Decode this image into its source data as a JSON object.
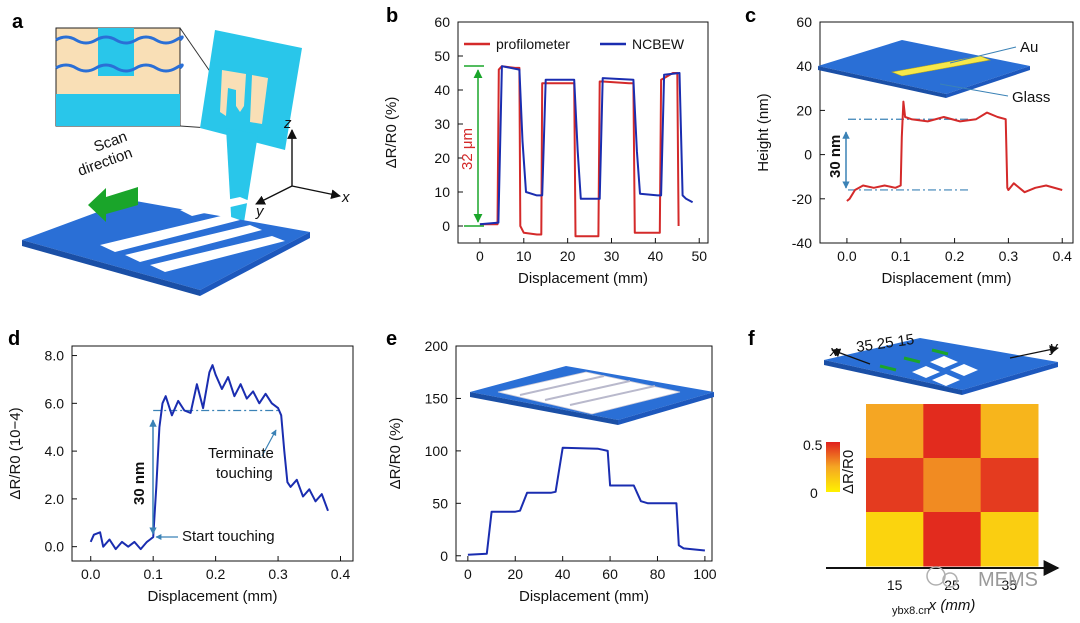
{
  "panels": {
    "a": {
      "label": "a",
      "scan_text_1": "Scan",
      "scan_text_2": "direction",
      "axis_z": "z",
      "axis_x": "x",
      "axis_y": "y"
    },
    "c": {
      "label_au": "Au",
      "label_glass": "Glass",
      "step_label": "30 nm"
    },
    "b": {
      "step_label": "32 μm"
    },
    "d": {
      "step_label": "30 nm",
      "ann_terminate_1": "Terminate",
      "ann_terminate_2": "touching",
      "ann_start": "Start touching"
    },
    "f": {
      "top_x_label": "x",
      "top_y_label": "y",
      "top_positions": "35 25 15",
      "cb_max": "0.5",
      "cb_min": "0"
    }
  },
  "watermark": {
    "text": "MEMS",
    "site": "ybx8.cn"
  },
  "colors": {
    "red": "#d42a2a",
    "navy": "#1a2db0",
    "green": "#1aa52a",
    "steel": "#3b82b6",
    "cyan": "#29c6ea",
    "blue_plate": "#2a6fd6"
  },
  "chart_data": [
    {
      "id": "b",
      "label": "b",
      "type": "line",
      "xlabel": "Displacement (mm)",
      "ylabel": "ΔR/R0 (%)",
      "xlim": [
        -5,
        52
      ],
      "ylim": [
        -5,
        60
      ],
      "xticks": [
        0,
        10,
        20,
        30,
        40,
        50
      ],
      "yticks": [
        0,
        10,
        20,
        30,
        40,
        50,
        60
      ],
      "series": [
        {
          "name": "profilometer",
          "color": "#d42a2a",
          "x": [
            0,
            4,
            4.3,
            5,
            8,
            9,
            9.2,
            10,
            13,
            14,
            14.2,
            15,
            20.5,
            21.5,
            21.8,
            22.5,
            26,
            27,
            27.3,
            28,
            34,
            35,
            35.3,
            36,
            40,
            41,
            41.3,
            42,
            44,
            45,
            45.3
          ],
          "y": [
            0.5,
            0.5,
            46,
            47,
            46.5,
            46.5,
            0,
            -2,
            -2.5,
            -2.5,
            42,
            42,
            42,
            42,
            -3,
            -3,
            -3,
            -3,
            42.5,
            42.5,
            42,
            42,
            -2,
            -2,
            -2,
            -2,
            43,
            43.5,
            45,
            45,
            0
          ]
        },
        {
          "name": "NCBEW",
          "color": "#1a2db0",
          "x": [
            0,
            4.2,
            5,
            9,
            9.7,
            10.5,
            13,
            14.2,
            15,
            21.5,
            22.3,
            23,
            26.5,
            27.3,
            28,
            35,
            35.8,
            36.5,
            40.5,
            41.3,
            42,
            45.5,
            46.2,
            47,
            48.5
          ],
          "y": [
            0.5,
            1,
            47,
            46,
            25,
            10,
            9,
            9,
            43,
            43,
            22,
            8,
            8,
            8,
            43.5,
            43,
            22,
            9.5,
            9,
            9,
            44.5,
            45,
            9,
            8,
            7
          ]
        }
      ],
      "legend": "top"
    },
    {
      "id": "c",
      "label": "c",
      "type": "line",
      "xlabel": "Displacement (mm)",
      "ylabel": "Height (nm)",
      "xlim": [
        -0.05,
        0.42
      ],
      "ylim": [
        -40,
        60
      ],
      "xticks": [
        0.0,
        0.1,
        0.2,
        0.3,
        0.4
      ],
      "yticks": [
        -40,
        -20,
        0,
        20,
        40,
        60
      ],
      "series": [
        {
          "color": "#d42a2a",
          "x": [
            0.0,
            0.005,
            0.015,
            0.03,
            0.05,
            0.07,
            0.09,
            0.1,
            0.102,
            0.105,
            0.108,
            0.12,
            0.15,
            0.18,
            0.21,
            0.24,
            0.26,
            0.28,
            0.295,
            0.298,
            0.3,
            0.31,
            0.33,
            0.35,
            0.37,
            0.4
          ],
          "y": [
            -21,
            -20,
            -16,
            -14,
            -15,
            -14,
            -15,
            -14,
            8,
            24,
            17,
            16,
            15,
            17,
            15,
            16,
            19,
            17,
            16,
            -15,
            -16,
            -13,
            -17,
            -15,
            -14,
            -16
          ]
        }
      ],
      "refs": [
        16,
        -16
      ]
    },
    {
      "id": "d",
      "label": "d",
      "type": "line",
      "xlabel": "Displacement (mm)",
      "ylabel": "ΔR/R0 (10−4)",
      "xlim": [
        -0.03,
        0.42
      ],
      "ylim": [
        -0.6,
        8.4
      ],
      "xticks": [
        0.0,
        0.1,
        0.2,
        0.3,
        0.4
      ],
      "yticks": [
        0.0,
        2.0,
        4.0,
        6.0,
        8.0
      ],
      "ytick_labels": [
        "0.0",
        "2.0",
        "4.0",
        "6.0",
        "8.0"
      ],
      "series": [
        {
          "color": "#1a2db0",
          "x": [
            0.0,
            0.005,
            0.015,
            0.02,
            0.03,
            0.04,
            0.05,
            0.06,
            0.07,
            0.08,
            0.09,
            0.095,
            0.1,
            0.105,
            0.11,
            0.115,
            0.12,
            0.13,
            0.14,
            0.15,
            0.16,
            0.17,
            0.18,
            0.19,
            0.195,
            0.2,
            0.21,
            0.22,
            0.23,
            0.24,
            0.25,
            0.26,
            0.27,
            0.28,
            0.29,
            0.3,
            0.305,
            0.31,
            0.315,
            0.32,
            0.33,
            0.34,
            0.35,
            0.36,
            0.37,
            0.38
          ],
          "y": [
            0.2,
            0.5,
            0.6,
            0.0,
            0.3,
            -0.1,
            0.2,
            0.0,
            0.2,
            -0.1,
            0.2,
            0.3,
            0.4,
            2.5,
            5.0,
            6.0,
            6.3,
            5.5,
            6.1,
            5.7,
            5.6,
            6.8,
            5.8,
            7.3,
            7.6,
            7.2,
            6.6,
            7.1,
            6.3,
            6.8,
            6.2,
            6.5,
            6.0,
            6.4,
            6.0,
            5.8,
            5.5,
            4.0,
            2.7,
            2.5,
            2.8,
            2.1,
            2.4,
            1.9,
            2.2,
            1.5
          ]
        }
      ],
      "ref": 5.7
    },
    {
      "id": "e",
      "label": "e",
      "type": "line",
      "xlabel": "Displacement (mm)",
      "ylabel": "ΔR/R0 (%)",
      "xlim": [
        -5,
        103
      ],
      "ylim": [
        -5,
        200
      ],
      "xticks": [
        0,
        20,
        40,
        60,
        80,
        100
      ],
      "yticks": [
        0,
        50,
        100,
        150,
        200
      ],
      "series": [
        {
          "color": "#1a2db0",
          "x": [
            0,
            4,
            8,
            10,
            20,
            22,
            25,
            35,
            37,
            40,
            55,
            57,
            59,
            60,
            70,
            73,
            76,
            88,
            89,
            91,
            100
          ],
          "y": [
            1,
            1.5,
            2,
            42,
            42,
            43,
            60,
            60,
            61,
            103,
            102,
            101,
            100,
            67,
            67,
            52,
            50,
            50,
            10,
            7,
            5
          ]
        }
      ]
    },
    {
      "id": "f",
      "label": "f",
      "type": "heatmap",
      "xlabel": "x (mm)",
      "ylabel": "ΔR/R0",
      "xticks": [
        "15",
        "25",
        "35"
      ],
      "rows": 3,
      "cols": 3,
      "values": [
        [
          0.25,
          0.48,
          0.2
        ],
        [
          0.45,
          0.3,
          0.45
        ],
        [
          0.1,
          0.48,
          0.12
        ]
      ],
      "colorbar": [
        0,
        0.5
      ]
    }
  ]
}
